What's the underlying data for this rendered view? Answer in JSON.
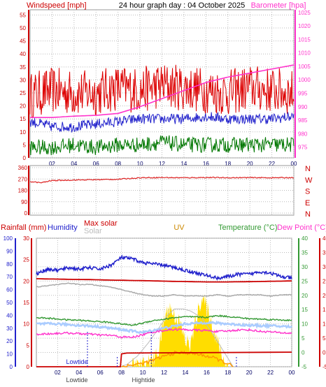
{
  "header": {
    "title": "24 hour graph day : 04 October 2025",
    "wind_label": "Windspeed [mph]",
    "baro_label": "Barometer [hpa]"
  },
  "colors": {
    "wind": "#dd0000",
    "gust_green": "#007700",
    "avg_blue": "#2222cc",
    "baro": "#ff33cc",
    "dir": "#dd2222",
    "rain": "#cc0000",
    "humidity": "#2222cc",
    "solar": "#bbbbbb",
    "uv": "#ffdd00",
    "temp": "#339933",
    "dew": "#ff33cc",
    "grid": "#bbbbbb"
  },
  "chart_data": [
    {
      "type": "line",
      "name": "wind-baro",
      "x_ticks": [
        "02",
        "04",
        "06",
        "08",
        "10",
        "12",
        "14",
        "16",
        "18",
        "20",
        "22",
        "00"
      ],
      "wind_axis": {
        "ticks": [
          0,
          5,
          10,
          15,
          20,
          25,
          30,
          35,
          40,
          45,
          50,
          55
        ],
        "ylim": [
          0,
          57
        ]
      },
      "baro_axis": {
        "ticks": [
          975,
          980,
          985,
          990,
          995,
          1000,
          1005,
          1010,
          1015,
          1020,
          1025
        ],
        "ylim": [
          971,
          1026
        ]
      },
      "series": [
        {
          "name": "gust",
          "axis": "wind",
          "x": [
            0,
            2,
            4,
            6,
            8,
            10,
            12,
            14,
            16,
            18,
            20,
            22,
            24
          ],
          "y": [
            24,
            26,
            25,
            25,
            27,
            26,
            28,
            27,
            26,
            25,
            27,
            26,
            25
          ],
          "noise": 9
        },
        {
          "name": "average",
          "axis": "wind",
          "x": [
            0,
            2,
            4,
            6,
            8,
            10,
            12,
            14,
            16,
            18,
            20,
            22,
            24
          ],
          "y": [
            14,
            12,
            12,
            13,
            14,
            15,
            15,
            15,
            16,
            15,
            15,
            15,
            16
          ],
          "noise": 2
        },
        {
          "name": "lull",
          "axis": "wind",
          "x": [
            0,
            2,
            4,
            6,
            8,
            10,
            12,
            14,
            16,
            18,
            20,
            22,
            24
          ],
          "y": [
            4,
            4,
            5,
            4,
            5,
            5,
            6,
            5,
            5,
            5,
            5,
            5,
            5
          ],
          "noise": 3
        },
        {
          "name": "barometer",
          "axis": "baro",
          "x": [
            0,
            2,
            4,
            6,
            8,
            10,
            12,
            14,
            16,
            18,
            20,
            22,
            24
          ],
          "y": [
            986,
            986,
            986.5,
            986.8,
            987.5,
            990,
            993,
            996,
            999,
            1001,
            1002.5,
            1004,
            1005.5
          ],
          "noise": 0
        }
      ]
    },
    {
      "type": "line",
      "name": "wind-direction",
      "y_ticks": [
        "360",
        "270",
        "180",
        "90",
        "0"
      ],
      "y_values": [
        360,
        270,
        180,
        90,
        0
      ],
      "compass": [
        "N",
        "W",
        "S",
        "E",
        "N"
      ],
      "ylim": [
        0,
        360
      ],
      "series": [
        {
          "name": "direction",
          "x": [
            0,
            1,
            2,
            4,
            6,
            8,
            10,
            12,
            14,
            16,
            18,
            20,
            22,
            24
          ],
          "y": [
            250,
            240,
            258,
            262,
            265,
            268,
            280,
            282,
            280,
            282,
            280,
            281,
            280,
            281
          ],
          "noise": 4
        }
      ]
    },
    {
      "type": "line",
      "name": "multi",
      "labels": {
        "rain": "Rainfall (mm)",
        "humidity": "Humidity",
        "max_solar": "Max solar",
        "solar": "Solar",
        "uv": "UV",
        "temp": "Temperature (°C)",
        "dew": "Dew Point (°C)"
      },
      "axis_humidity": [
        0,
        10,
        20,
        30,
        40,
        50,
        60,
        70,
        80,
        90,
        100
      ],
      "axis_rain": [
        0,
        5,
        10,
        15,
        20,
        25,
        30
      ],
      "axis_temp": [
        -5,
        0,
        5,
        10,
        15,
        20,
        25,
        30,
        35,
        40
      ],
      "markers": {
        "lowtide": "Lowtide",
        "hightide": "Hightide",
        "lowtide_x": 4.8,
        "hightide_x": 10.8
      },
      "series": [
        {
          "name": "humidity",
          "x": [
            0,
            1,
            2,
            3,
            4,
            5,
            6,
            7,
            8,
            9,
            10,
            11,
            12,
            13,
            14,
            15,
            16,
            17,
            18,
            19,
            20,
            21,
            22,
            23,
            24
          ],
          "y": [
            72,
            76,
            75,
            77,
            76,
            77,
            76,
            79,
            85,
            84,
            81,
            80,
            79,
            77,
            75,
            73,
            71,
            69,
            70,
            72,
            72,
            74,
            73,
            70,
            69
          ],
          "noise": 1.3
        },
        {
          "name": "max_solar",
          "x": [
            0,
            1,
            2,
            3,
            4,
            5,
            6,
            7,
            8,
            9,
            10,
            11,
            12,
            13,
            14,
            15,
            16,
            17,
            18,
            19,
            20,
            21,
            22,
            23,
            24
          ],
          "y": [
            68.5,
            68.3,
            68.2,
            68,
            67.9,
            67.8,
            67.6,
            67.4,
            67.3,
            67.1,
            67,
            66.8,
            66.6,
            66.4,
            66.3,
            66.1,
            66,
            66,
            66,
            66.1,
            66.2,
            66.3,
            66.5,
            66.6,
            66.8
          ],
          "noise": 0
        },
        {
          "name": "solar",
          "x": [
            0,
            1,
            2,
            3,
            4,
            5,
            6,
            7,
            8,
            9,
            10,
            11,
            12,
            13,
            14,
            15,
            16,
            17,
            18,
            19,
            20,
            21,
            22,
            23,
            24
          ],
          "y": [
            62,
            63,
            64,
            65,
            64,
            64,
            63,
            62,
            60,
            58,
            56,
            55,
            55,
            56,
            55,
            55,
            55,
            56,
            55,
            56,
            56,
            56,
            55,
            56,
            56
          ],
          "noise": 0.3
        },
        {
          "name": "temperature",
          "x": [
            0,
            1,
            2,
            3,
            4,
            5,
            6,
            7,
            8,
            9,
            10,
            11,
            12,
            13,
            14,
            15,
            16,
            17,
            18,
            19,
            20,
            21,
            22,
            23,
            24
          ],
          "y": [
            12.2,
            12,
            11.7,
            11.4,
            11.3,
            11,
            10.8,
            10.5,
            10,
            9.5,
            10.3,
            11.2,
            11.6,
            12.2,
            12.5,
            12.4,
            12.3,
            12.9,
            12.6,
            12.2,
            11.8,
            11.7,
            11.5,
            11.4,
            11.2
          ],
          "noise": 0.25
        },
        {
          "name": "light_blue",
          "x": [
            0,
            2,
            4,
            6,
            8,
            10,
            12,
            14,
            16,
            18,
            20,
            22,
            24
          ],
          "y": [
            10,
            10,
            9.5,
            9,
            8,
            7,
            8.5,
            10,
            10.5,
            10,
            9.5,
            9.3,
            9
          ],
          "noise": 0.4
        },
        {
          "name": "dew_point",
          "x": [
            0,
            1,
            2,
            3,
            4,
            5,
            6,
            7,
            8,
            9,
            10,
            11,
            12,
            13,
            14,
            15,
            16,
            17,
            18,
            19,
            20,
            21,
            22,
            23,
            24
          ],
          "y": [
            6.4,
            6.5,
            6.7,
            6.8,
            6.6,
            6.4,
            6.1,
            6,
            5.4,
            5.3,
            6.2,
            7.2,
            7.7,
            8.1,
            8,
            7.8,
            7.7,
            7.3,
            7.5,
            7.9,
            7.9,
            7.4,
            7.2,
            6.9,
            6.7
          ],
          "noise": 0.35
        },
        {
          "name": "max_uv_curve",
          "x": [
            7.8,
            8.5,
            9.5,
            10.5,
            11.5,
            12.3,
            13,
            13.8,
            14.5,
            15.5,
            16.5,
            17.5,
            18.5
          ],
          "y": [
            0,
            0.5,
            2.5,
            5.5,
            9,
            12,
            13.5,
            13.5,
            13,
            11.5,
            8,
            4,
            0
          ],
          "noise": 0
        },
        {
          "name": "uv_area",
          "x": [
            9,
            10,
            11,
            11.5,
            12,
            12.5,
            13,
            13.5,
            14,
            14.5,
            15,
            15.5,
            16,
            16.5,
            17,
            17.5,
            18
          ],
          "y": [
            0,
            0.3,
            1.5,
            4,
            11,
            14,
            12,
            10,
            6,
            5,
            11,
            16,
            14,
            10,
            6,
            2,
            0
          ],
          "noise": 2.2
        },
        {
          "name": "uv_line",
          "x": [
            8,
            9,
            10,
            11,
            12,
            13,
            14,
            15,
            16,
            17,
            18,
            18.5
          ],
          "y": [
            0,
            0.4,
            0.8,
            1.5,
            2.5,
            3.2,
            3.3,
            3,
            2.5,
            1.8,
            0.7,
            0
          ],
          "noise": 0.4
        },
        {
          "name": "rain",
          "x": [
            0,
            7.5,
            7.9,
            8,
            8.5,
            24
          ],
          "y": [
            0,
            0,
            0,
            3,
            3.2,
            3.4
          ],
          "noise": 0
        }
      ]
    }
  ]
}
